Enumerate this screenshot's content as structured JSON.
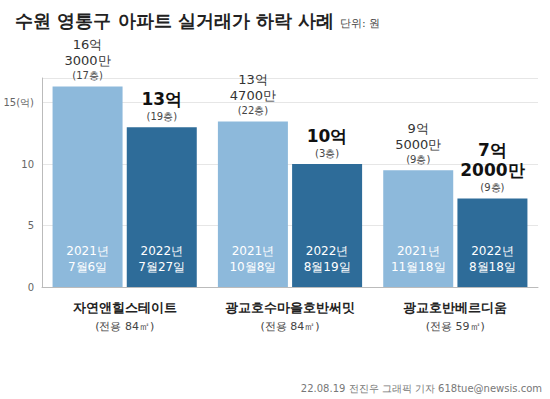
{
  "chart_data": {
    "type": "bar",
    "title": "수원 영통구 아파트 실거래가 하락 사례",
    "unit": "단위: 원",
    "categories": [
      "자연앤힐스테이트",
      "광교호수마을호반써밋",
      "광교호반베르디움"
    ],
    "category_notes": [
      "(전용 84㎡)",
      "(전용 84㎡)",
      "(전용 59㎡)"
    ],
    "series": [
      {
        "color": "#8db9db",
        "values": [
          16.3,
          13.47,
          9.5
        ],
        "value_labels": [
          "16억 3000만",
          "13억 4700만",
          "9억 5000만"
        ],
        "floors": [
          "(17층)",
          "(22층)",
          "(9층)"
        ],
        "dates": [
          "2021년 7월6일",
          "2021년 10월8일",
          "2021년 11월18일"
        ]
      },
      {
        "color": "#2e6c99",
        "values": [
          13,
          10,
          7.2
        ],
        "value_labels": [
          "13억",
          "10억",
          "7억 2000만"
        ],
        "floors": [
          "(19층)",
          "(3층)",
          "(9층)"
        ],
        "dates": [
          "2022년 7월27일",
          "2022년 8월19일",
          "2022년 8월18일"
        ]
      }
    ],
    "ylim": [
      0,
      17
    ],
    "yticks": [
      0,
      5,
      10,
      {
        "value": 15,
        "label": "15(억)"
      }
    ],
    "grid": true,
    "data_labels": true,
    "source": "22.08.19 전진우 그래픽 기자 618tue@newsis.com"
  }
}
